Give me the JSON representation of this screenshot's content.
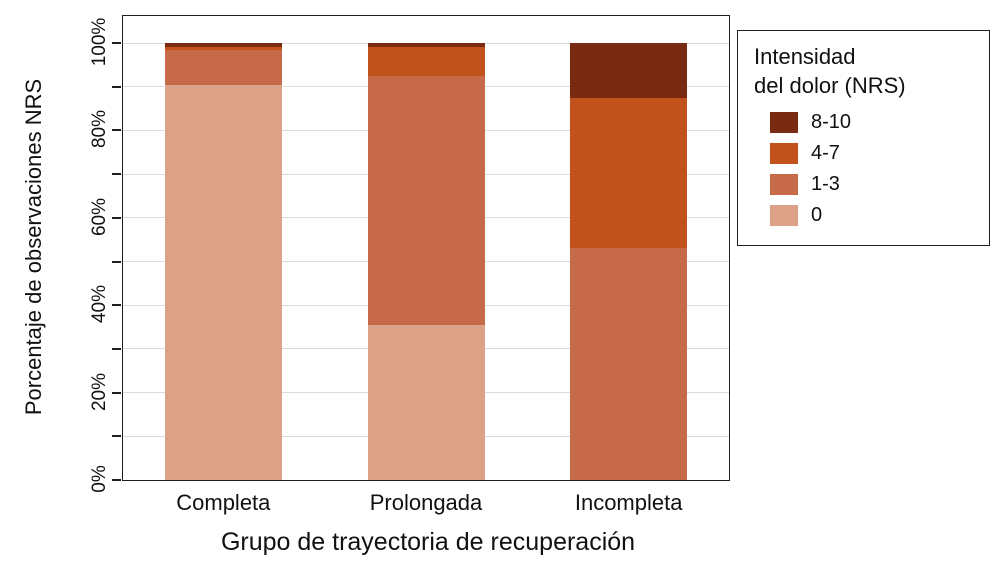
{
  "chart_data": {
    "type": "bar",
    "subtype": "stacked-100-percent",
    "title": "",
    "xlabel": "Grupo de trayectoria de recuperación",
    "ylabel": "Porcentaje de observaciones NRS",
    "categories": [
      "Completa",
      "Prolongada",
      "Incompleta"
    ],
    "series": [
      {
        "name": "0",
        "color": "#DCA287",
        "values": [
          90.5,
          35.5,
          0
        ]
      },
      {
        "name": "1-3",
        "color": "#C76A49",
        "values": [
          8.0,
          57.0,
          53.0
        ]
      },
      {
        "name": "4-7",
        "color": "#C1521C",
        "values": [
          0.5,
          6.5,
          34.5
        ]
      },
      {
        "name": "8-10",
        "color": "#7A2A10",
        "values": [
          1.0,
          1.0,
          12.5
        ]
      }
    ],
    "y_ticks": [
      "0%",
      "20%",
      "40%",
      "60%",
      "80%",
      "100%"
    ],
    "ylim": [
      0,
      100
    ],
    "grid": true,
    "legend": {
      "title_line1": "Intensidad",
      "title_line2": "del dolor (NRS)",
      "entries": [
        "8-10",
        "4-7",
        "1-3",
        "0"
      ],
      "position": "top-right"
    }
  }
}
